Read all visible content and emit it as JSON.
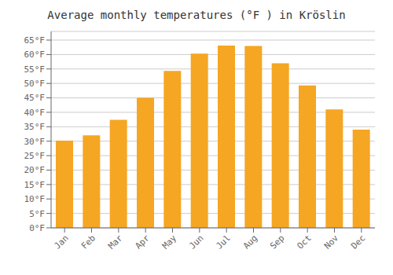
{
  "chart_data": {
    "type": "bar",
    "title": "Average monthly temperatures (°F ) in Kröslin",
    "categories": [
      "Jan",
      "Feb",
      "Mar",
      "Apr",
      "May",
      "Jun",
      "Jul",
      "Aug",
      "Sep",
      "Oct",
      "Nov",
      "Dec"
    ],
    "values": [
      30.2,
      32.0,
      37.4,
      45.0,
      54.3,
      60.3,
      63.1,
      63.0,
      57.0,
      49.3,
      41.0,
      34.0
    ],
    "color": "#F5A623",
    "ylim": [
      0,
      68
    ],
    "yticks": [
      {
        "value": 0,
        "label": "0°F"
      },
      {
        "value": 5,
        "label": "5°F"
      },
      {
        "value": 10,
        "label": "10°F"
      },
      {
        "value": 15,
        "label": "15°F"
      },
      {
        "value": 20,
        "label": "20°F"
      },
      {
        "value": 25,
        "label": "25°F"
      },
      {
        "value": 30,
        "label": "30°F"
      },
      {
        "value": 35,
        "label": "35°F"
      },
      {
        "value": 40,
        "label": "40°F"
      },
      {
        "value": 45,
        "label": "45°F"
      },
      {
        "value": 50,
        "label": "50°F"
      },
      {
        "value": 55,
        "label": "55°F"
      },
      {
        "value": 60,
        "label": "60°F"
      },
      {
        "value": 65,
        "label": "65°F"
      }
    ],
    "grid": true
  }
}
